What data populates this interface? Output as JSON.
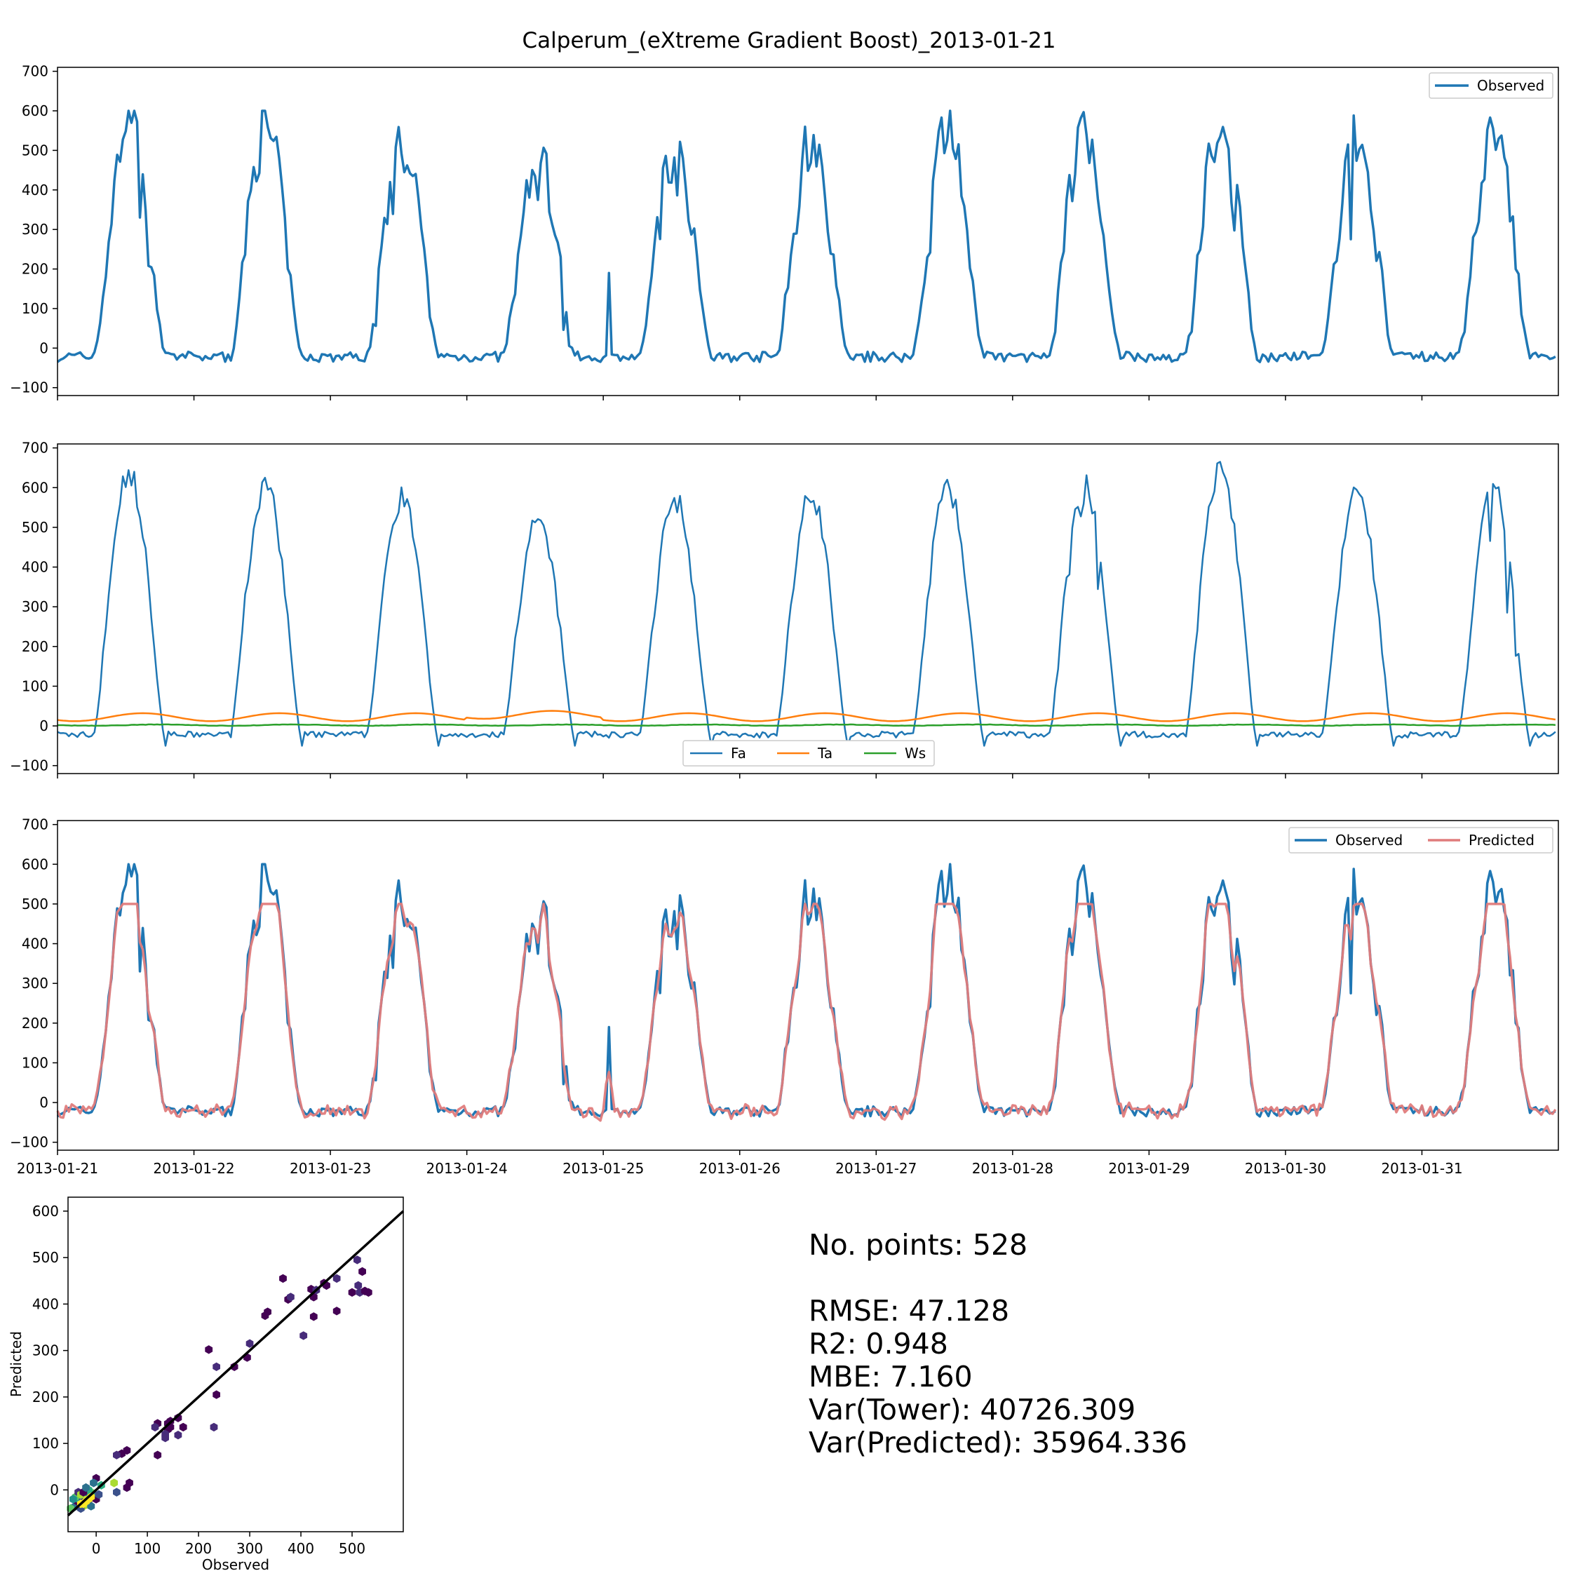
{
  "figure_title": "Calperum_(eXtreme Gradient Boost)_2013-01-21",
  "colors": {
    "observed": "#1f77b4",
    "predicted": "#e07c7c",
    "ta": "#ff7f0e",
    "ws": "#2ca02c",
    "one_to_one": "#000000"
  },
  "chart_data": [
    {
      "type": "line",
      "panel": "observed",
      "title": "",
      "xlabel": "",
      "ylabel": "",
      "ylim": [
        -120,
        710
      ],
      "yticks": [
        -100,
        0,
        100,
        200,
        300,
        400,
        500,
        600,
        700
      ],
      "xlim_days": [
        0,
        11
      ],
      "x_tick_labels": [],
      "legend_position": "upper-right",
      "grid": false,
      "series": [
        {
          "name": "Observed",
          "key": "observed",
          "color": "#1f77b4",
          "width": 3.5
        }
      ]
    },
    {
      "type": "line",
      "panel": "drivers",
      "title": "",
      "xlabel": "",
      "ylabel": "",
      "ylim": [
        -120,
        710
      ],
      "yticks": [
        -100,
        0,
        100,
        200,
        300,
        400,
        500,
        600,
        700
      ],
      "xlim_days": [
        0,
        11
      ],
      "x_tick_labels": [],
      "legend_position": "lower-center",
      "grid": false,
      "series": [
        {
          "name": "Fa",
          "key": "fa",
          "color": "#1f77b4",
          "width": 2.5
        },
        {
          "name": "Ta",
          "key": "ta",
          "color": "#ff7f0e",
          "width": 2.5
        },
        {
          "name": "Ws",
          "key": "ws",
          "color": "#2ca02c",
          "width": 2.5
        }
      ]
    },
    {
      "type": "line",
      "panel": "obs_pred",
      "title": "",
      "xlabel": "",
      "ylabel": "",
      "ylim": [
        -120,
        710
      ],
      "yticks": [
        -100,
        0,
        100,
        200,
        300,
        400,
        500,
        600,
        700
      ],
      "xlim_days": [
        0,
        11
      ],
      "x_tick_labels": [
        "2013-01-21",
        "2013-01-22",
        "2013-01-23",
        "2013-01-24",
        "2013-01-25",
        "2013-01-26",
        "2013-01-27",
        "2013-01-28",
        "2013-01-29",
        "2013-01-30",
        "2013-01-31"
      ],
      "legend_position": "upper-right",
      "grid": false,
      "series": [
        {
          "name": "Observed",
          "key": "observed",
          "color": "#1f77b4",
          "width": 3.5
        },
        {
          "name": "Predicted",
          "key": "predicted",
          "color": "#e07c7c",
          "width": 3.5
        }
      ]
    },
    {
      "type": "scatter",
      "panel": "hexbin",
      "title": "",
      "xlabel": "Observed",
      "ylabel": "Predicted",
      "xlim": [
        -55,
        600
      ],
      "ylim": [
        -90,
        630
      ],
      "xticks": [
        0,
        100,
        200,
        300,
        400,
        500
      ],
      "yticks": [
        0,
        100,
        200,
        300,
        400,
        500,
        600
      ],
      "one_to_one_line": true,
      "points": [
        [
          510,
          495
        ],
        [
          520,
          470
        ],
        [
          500,
          425
        ],
        [
          515,
          425
        ],
        [
          525,
          428
        ],
        [
          532,
          425
        ],
        [
          512,
          440
        ],
        [
          365,
          455
        ],
        [
          375,
          410
        ],
        [
          380,
          415
        ],
        [
          420,
          432
        ],
        [
          425,
          415
        ],
        [
          430,
          430
        ],
        [
          445,
          445
        ],
        [
          450,
          440
        ],
        [
          470,
          455
        ],
        [
          470,
          385
        ],
        [
          425,
          373
        ],
        [
          405,
          332
        ],
        [
          335,
          383
        ],
        [
          330,
          375
        ],
        [
          300,
          315
        ],
        [
          295,
          285
        ],
        [
          270,
          265
        ],
        [
          235,
          265
        ],
        [
          220,
          302
        ],
        [
          235,
          205
        ],
        [
          230,
          135
        ],
        [
          160,
          155
        ],
        [
          170,
          135
        ],
        [
          160,
          118
        ],
        [
          140,
          143
        ],
        [
          140,
          130
        ],
        [
          135,
          120
        ],
        [
          145,
          148
        ],
        [
          145,
          135
        ],
        [
          135,
          112
        ],
        [
          120,
          143
        ],
        [
          120,
          75
        ],
        [
          115,
          135
        ],
        [
          60,
          85
        ],
        [
          50,
          78
        ],
        [
          40,
          75
        ],
        [
          65,
          15
        ],
        [
          60,
          5
        ],
        [
          35,
          15
        ],
        [
          40,
          -5
        ],
        [
          10,
          10
        ],
        [
          0,
          25
        ],
        [
          -5,
          15
        ],
        [
          -10,
          -5
        ],
        [
          -15,
          -10
        ],
        [
          -20,
          -15
        ],
        [
          -25,
          -20
        ],
        [
          -30,
          -25
        ],
        [
          -35,
          -30
        ],
        [
          -40,
          -35
        ],
        [
          -45,
          -38
        ],
        [
          -50,
          -40
        ],
        [
          -15,
          -25
        ],
        [
          -20,
          -30
        ],
        [
          -25,
          -35
        ],
        [
          -30,
          -40
        ],
        [
          -5,
          -15
        ],
        [
          0,
          -20
        ],
        [
          -10,
          -35
        ],
        [
          -40,
          -15
        ],
        [
          -35,
          -5
        ],
        [
          -45,
          -20
        ],
        [
          -30,
          -10
        ],
        [
          5,
          -10
        ],
        [
          -15,
          0
        ],
        [
          -25,
          -5
        ],
        [
          -20,
          5
        ]
      ],
      "hot_points": [
        [
          -20,
          -25
        ],
        [
          -25,
          -30
        ],
        [
          -30,
          -30
        ],
        [
          -15,
          -20
        ],
        [
          -10,
          -15
        ]
      ]
    }
  ],
  "stats": {
    "n_points": "No. points: 528",
    "rmse": "RMSE: 47.128",
    "r2": "R2: 0.948",
    "mbe": "MBE: 7.160",
    "var_tower": "Var(Tower): 40726.309",
    "var_predicted": "Var(Predicted): 35964.336"
  }
}
